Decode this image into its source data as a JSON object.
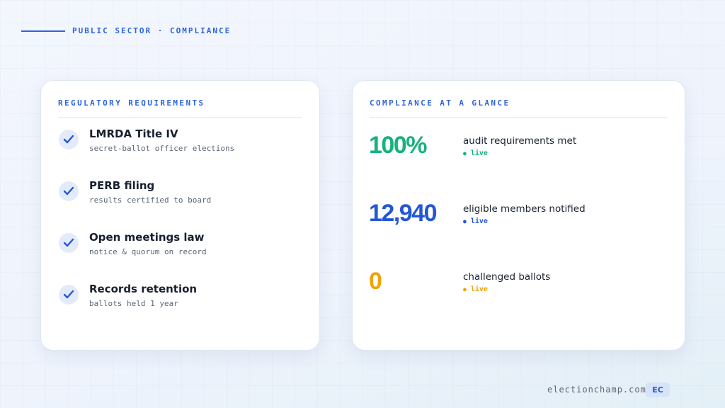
{
  "header": {
    "eyebrow": "PUBLIC SECTOR · COMPLIANCE"
  },
  "requirements": {
    "title": "REGULATORY REQUIREMENTS",
    "items": [
      {
        "title": "LMRDA Title IV",
        "subtitle": "secret-ballot officer elections"
      },
      {
        "title": "PERB filing",
        "subtitle": "results certified to board"
      },
      {
        "title": "Open meetings law",
        "subtitle": "notice & quorum on record"
      },
      {
        "title": "Records retention",
        "subtitle": "ballots held 1 year"
      }
    ]
  },
  "glance": {
    "title": "COMPLIANCE AT A GLANCE",
    "stats": [
      {
        "value": "100%",
        "label": "audit requirements met",
        "status": "live"
      },
      {
        "value": "12,940",
        "label": "eligible members notified",
        "status": "live"
      },
      {
        "value": "0",
        "label": "challenged ballots",
        "status": "live"
      }
    ]
  },
  "footer": {
    "site": "electionchamp.com",
    "badge": "EC"
  }
}
